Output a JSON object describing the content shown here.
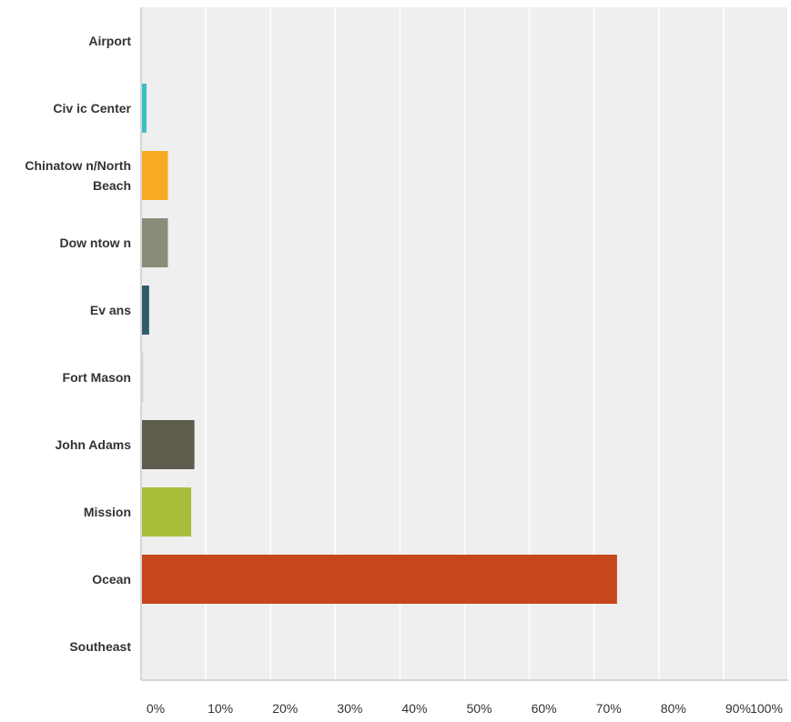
{
  "chart_data": {
    "type": "bar",
    "orientation": "horizontal",
    "categories": [
      "Airport",
      "Civic Center",
      "Chinatown/North Beach",
      "Downtown",
      "Evans",
      "Fort Mason",
      "John Adams",
      "Mission",
      "Ocean",
      "Southeast"
    ],
    "category_lines": [
      [
        "Airport"
      ],
      [
        "Civ ic Center"
      ],
      [
        "Chinatow n/North",
        "Beach"
      ],
      [
        "Dow ntow n"
      ],
      [
        "Ev ans"
      ],
      [
        "Fort Mason"
      ],
      [
        "John Adams"
      ],
      [
        "Mission"
      ],
      [
        "Ocean"
      ],
      [
        "Southeast"
      ]
    ],
    "values": [
      0,
      0.7,
      4.0,
      4.0,
      1.1,
      0.2,
      8.1,
      7.6,
      73.4,
      0
    ],
    "colors": [
      "#4FC3C3",
      "#3FBFBF",
      "#F7AB24",
      "#8A8B79",
      "#2E5C6B",
      "#D8D6C8",
      "#5E5C4C",
      "#A8BD3A",
      "#C8461B",
      "#888888"
    ],
    "xlim": [
      0,
      100
    ],
    "xticks": [
      "0%",
      "10%",
      "20%",
      "30%",
      "40%",
      "50%",
      "60%",
      "70%",
      "80%",
      "90%",
      "100%"
    ],
    "xlabel": "",
    "ylabel": "",
    "title": "",
    "grid": true,
    "legend": "none",
    "plot_background": "#EFEFEF",
    "grid_color": "#FFFFFF",
    "axis_color": "#CCCCCC"
  }
}
